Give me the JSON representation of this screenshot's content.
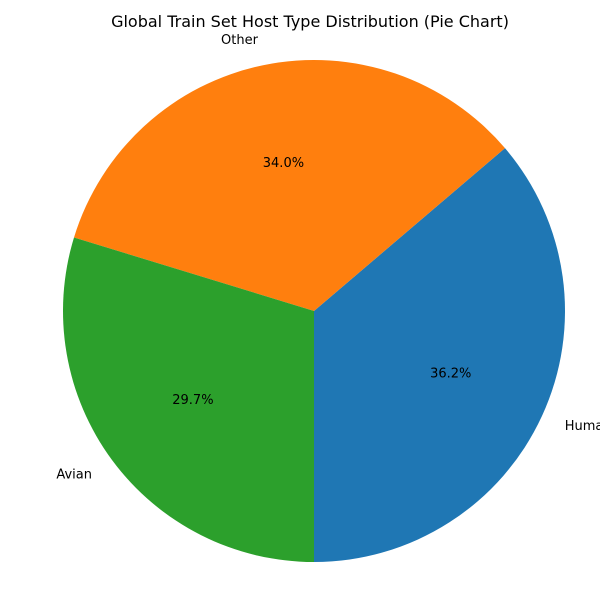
{
  "chart_data": {
    "type": "pie",
    "title": "Global Train Set Host Type Distribution (Pie Chart)",
    "slices": [
      {
        "label": "Human",
        "value": 36.2,
        "pct_label": "36.2%",
        "color": "#1f77b4"
      },
      {
        "label": "Other",
        "value": 34.0,
        "pct_label": "34.0%",
        "color": "#ff7f0e"
      },
      {
        "label": "Avian",
        "value": 29.7,
        "pct_label": "29.7%",
        "color": "#2ca02c"
      }
    ],
    "start_angle_deg": 270,
    "direction": "counterclockwise"
  }
}
